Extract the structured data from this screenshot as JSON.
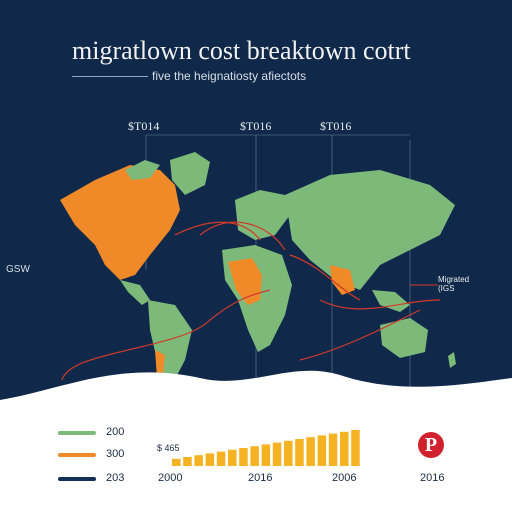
{
  "title": "migratlown cost breaktown cotrt",
  "subtitle": "five the heignatiosty afiectots",
  "columns": [
    "$T014",
    "$T016",
    "$T016"
  ],
  "side_label": "GSW",
  "annotations": [
    "Migrated",
    "(IGS"
  ],
  "colors": {
    "green": "#7dba7a",
    "orange": "#f08a28",
    "navy": "#123055",
    "bar": "#f5b222",
    "background": "#10294a",
    "panel": "#ffffff"
  },
  "chart_data": {
    "type": "bar",
    "legend": [
      {
        "value": "200",
        "color": "#7dba7a"
      },
      {
        "value": "300",
        "color": "#f08a28"
      },
      {
        "value": "203",
        "color": "#123055"
      }
    ],
    "bar_label": "$ 465",
    "values": [
      4,
      5,
      6,
      7,
      8,
      9,
      10,
      11,
      12,
      13,
      14,
      15,
      16,
      17,
      18,
      19,
      20
    ],
    "xticks": [
      "2000",
      "2016",
      "2006",
      "2016"
    ],
    "logo": "P"
  }
}
